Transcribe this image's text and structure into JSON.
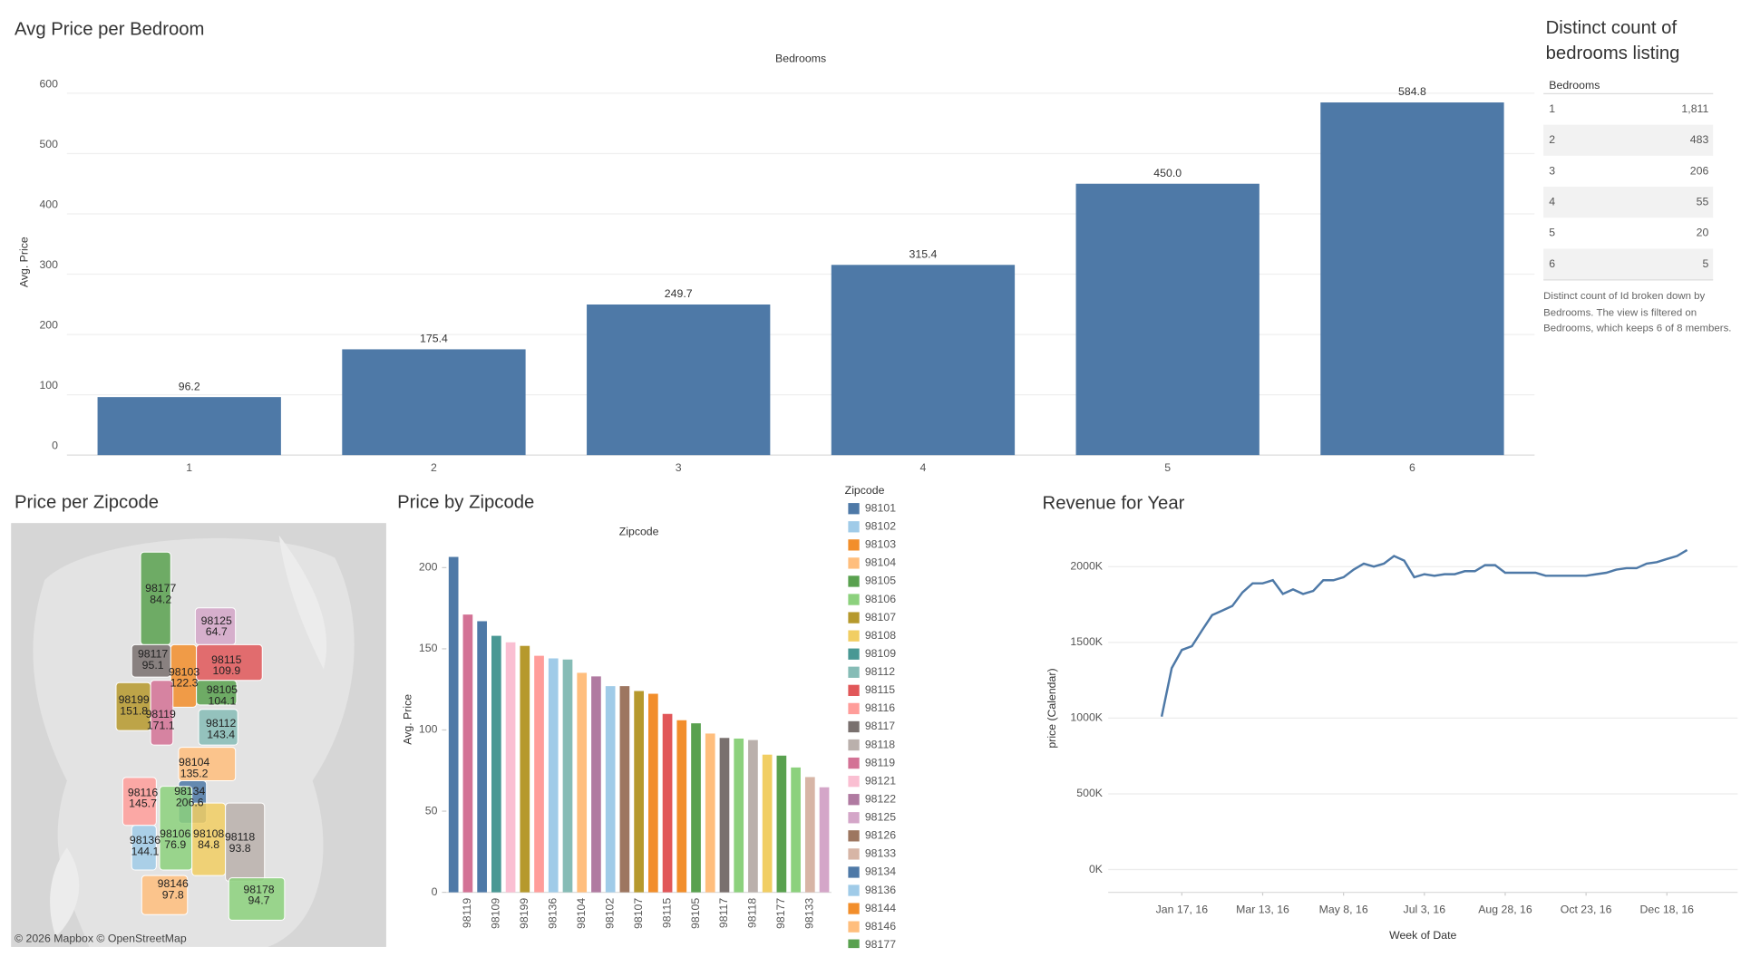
{
  "chart_data": [
    {
      "type": "bar",
      "title": "Avg Price per Bedroom",
      "x_label": "Bedrooms",
      "y_label": "Avg. Price",
      "categories": [
        "1",
        "2",
        "3",
        "4",
        "5",
        "6"
      ],
      "values": [
        96.2,
        175.4,
        249.7,
        315.4,
        450.0,
        584.8
      ],
      "value_labels": [
        "96.2",
        "175.4",
        "249.7",
        "315.4",
        "450.0",
        "584.8"
      ],
      "color": "#4e79a7",
      "ylim": [
        0,
        640
      ],
      "yticks": [
        0,
        100,
        200,
        300,
        400,
        500,
        600
      ],
      "grid": true
    },
    {
      "type": "table",
      "title": "Distinct count of bedrooms listing",
      "column_header": "Bedrooms",
      "categories": [
        "1",
        "2",
        "3",
        "4",
        "5",
        "6"
      ],
      "values": [
        1811,
        483,
        206,
        55,
        20,
        5
      ],
      "value_labels": [
        "1,811",
        "483",
        "206",
        "55",
        "20",
        "5"
      ],
      "caption": "Distinct count of Id broken down by Bedrooms. The view is filtered on Bedrooms, which keeps 6 of 8 members."
    },
    {
      "type": "map",
      "title": "Price per Zipcode",
      "attribution": "© 2026 Mapbox © OpenStreetMap",
      "categories": [
        "98177",
        "98125",
        "98117",
        "98103",
        "98115",
        "98105",
        "98199",
        "98119",
        "98112",
        "98104",
        "98116",
        "98134",
        "98136",
        "98106",
        "98108",
        "98118",
        "98146",
        "98178"
      ],
      "values": [
        84.2,
        64.7,
        95.1,
        122.3,
        109.9,
        104.1,
        151.8,
        171.1,
        143.4,
        135.2,
        145.7,
        206.6,
        144.1,
        76.9,
        84.8,
        93.8,
        97.8,
        94.7
      ],
      "colors": [
        "#59a14f",
        "#d4a6c8",
        "#79706e",
        "#f28e2b",
        "#e15759",
        "#59a14f",
        "#b6992d",
        "#d37295",
        "#86bcb6",
        "#ffbe7d",
        "#ff9d9a",
        "#4e79a7",
        "#a0cbe8",
        "#8cd17d",
        "#f1ce63",
        "#bab0ac",
        "#ffbe7d",
        "#8cd17d"
      ]
    },
    {
      "type": "bar",
      "title": "Price by Zipcode",
      "x_label": "Zipcode",
      "y_label": "Avg. Price",
      "categories": [
        null,
        "98119",
        null,
        "98109",
        null,
        "98199",
        null,
        "98136",
        null,
        "98104",
        null,
        "98102",
        null,
        "98107",
        null,
        "98115",
        null,
        "98105",
        null,
        "98117",
        null,
        "98118",
        null,
        "98177",
        null,
        "98133",
        null
      ],
      "values": [
        206.6,
        171.1,
        167,
        158,
        154,
        151.8,
        145.7,
        144.1,
        143.4,
        135.2,
        133,
        127,
        127,
        124,
        122.3,
        109.9,
        106,
        104.1,
        97.8,
        95.1,
        94.7,
        93.8,
        84.8,
        84.2,
        76.9,
        71,
        64.7
      ],
      "colors": [
        "#4e79a7",
        "#d37295",
        "#4e79a7",
        "#499894",
        "#fabfd2",
        "#b6992d",
        "#ff9d9a",
        "#a0cbe8",
        "#86bcb6",
        "#ffbe7d",
        "#b07aa1",
        "#a0cbe8",
        "#9d7660",
        "#b6992d",
        "#f28e2b",
        "#e15759",
        "#f28e2b",
        "#59a14f",
        "#ffbe7d",
        "#79706e",
        "#8cd17d",
        "#bab0ac",
        "#f1ce63",
        "#59a14f",
        "#8cd17d",
        "#d7b5a6",
        "#d4a6c8"
      ],
      "ylim": [
        0,
        213
      ],
      "yticks": [
        0,
        50,
        100,
        150,
        200
      ],
      "grid": false,
      "legend": {
        "title": "Zipcode",
        "position": "right",
        "items": [
          {
            "name": "98101",
            "color": "#4e79a7"
          },
          {
            "name": "98102",
            "color": "#a0cbe8"
          },
          {
            "name": "98103",
            "color": "#f28e2b"
          },
          {
            "name": "98104",
            "color": "#ffbe7d"
          },
          {
            "name": "98105",
            "color": "#59a14f"
          },
          {
            "name": "98106",
            "color": "#8cd17d"
          },
          {
            "name": "98107",
            "color": "#b6992d"
          },
          {
            "name": "98108",
            "color": "#f1ce63"
          },
          {
            "name": "98109",
            "color": "#499894"
          },
          {
            "name": "98112",
            "color": "#86bcb6"
          },
          {
            "name": "98115",
            "color": "#e15759"
          },
          {
            "name": "98116",
            "color": "#ff9d9a"
          },
          {
            "name": "98117",
            "color": "#79706e"
          },
          {
            "name": "98118",
            "color": "#bab0ac"
          },
          {
            "name": "98119",
            "color": "#d37295"
          },
          {
            "name": "98121",
            "color": "#fabfd2"
          },
          {
            "name": "98122",
            "color": "#b07aa1"
          },
          {
            "name": "98125",
            "color": "#d4a6c8"
          },
          {
            "name": "98126",
            "color": "#9d7660"
          },
          {
            "name": "98133",
            "color": "#d7b5a6"
          },
          {
            "name": "98134",
            "color": "#4e79a7"
          },
          {
            "name": "98136",
            "color": "#a0cbe8"
          },
          {
            "name": "98144",
            "color": "#f28e2b"
          },
          {
            "name": "98146",
            "color": "#ffbe7d"
          },
          {
            "name": "98177",
            "color": "#59a14f"
          }
        ]
      }
    },
    {
      "type": "line",
      "title": "Revenue for Year",
      "x_label": "Week of Date",
      "y_label": "price (Calendar)",
      "x": [
        "2016-01-03",
        "2016-01-10",
        "2016-01-17",
        "2016-01-24",
        "2016-01-31",
        "2016-02-07",
        "2016-02-14",
        "2016-02-21",
        "2016-02-28",
        "2016-03-06",
        "2016-03-13",
        "2016-03-20",
        "2016-03-27",
        "2016-04-03",
        "2016-04-10",
        "2016-04-17",
        "2016-04-24",
        "2016-05-01",
        "2016-05-08",
        "2016-05-15",
        "2016-05-22",
        "2016-05-29",
        "2016-06-05",
        "2016-06-12",
        "2016-06-19",
        "2016-06-26",
        "2016-07-03",
        "2016-07-10",
        "2016-07-17",
        "2016-07-24",
        "2016-07-31",
        "2016-08-07",
        "2016-08-14",
        "2016-08-21",
        "2016-08-28",
        "2016-09-04",
        "2016-09-11",
        "2016-09-18",
        "2016-09-25",
        "2016-10-02",
        "2016-10-09",
        "2016-10-16",
        "2016-10-23",
        "2016-10-30",
        "2016-11-06",
        "2016-11-13",
        "2016-11-20",
        "2016-11-27",
        "2016-12-04",
        "2016-12-11",
        "2016-12-18",
        "2016-12-25",
        "2017-01-01"
      ],
      "values": [
        1010000,
        1330000,
        1450000,
        1475000,
        1580000,
        1680000,
        1710000,
        1740000,
        1830000,
        1890000,
        1890000,
        1910000,
        1820000,
        1850000,
        1820000,
        1840000,
        1910000,
        1910000,
        1930000,
        1980000,
        2020000,
        2000000,
        2020000,
        2070000,
        2040000,
        1930000,
        1950000,
        1940000,
        1950000,
        1950000,
        1970000,
        1970000,
        2010000,
        2010000,
        1960000,
        1960000,
        1960000,
        1960000,
        1940000,
        1940000,
        1940000,
        1940000,
        1940000,
        1950000,
        1960000,
        1980000,
        1990000,
        1990000,
        2020000,
        2030000,
        2050000,
        2070000,
        2110000
      ],
      "color": "#4e79a7",
      "xlim": [
        "2015-11-27",
        "2017-02-05"
      ],
      "xticks": [
        {
          "value": "2016-01-17",
          "label": "Jan 17, 16"
        },
        {
          "value": "2016-03-13",
          "label": "Mar 13, 16"
        },
        {
          "value": "2016-05-08",
          "label": "May 8, 16"
        },
        {
          "value": "2016-07-03",
          "label": "Jul 3, 16"
        },
        {
          "value": "2016-08-28",
          "label": "Aug 28, 16"
        },
        {
          "value": "2016-10-23",
          "label": "Oct 23, 16"
        },
        {
          "value": "2016-12-18",
          "label": "Dec 18, 16"
        }
      ],
      "ylim": [
        -150000,
        2280000
      ],
      "yticks": [
        {
          "value": 0,
          "label": "0K"
        },
        {
          "value": 500000,
          "label": "500K"
        },
        {
          "value": 1000000,
          "label": "1000K"
        },
        {
          "value": 1500000,
          "label": "1500K"
        },
        {
          "value": 2000000,
          "label": "2000K"
        }
      ],
      "grid": true
    }
  ]
}
